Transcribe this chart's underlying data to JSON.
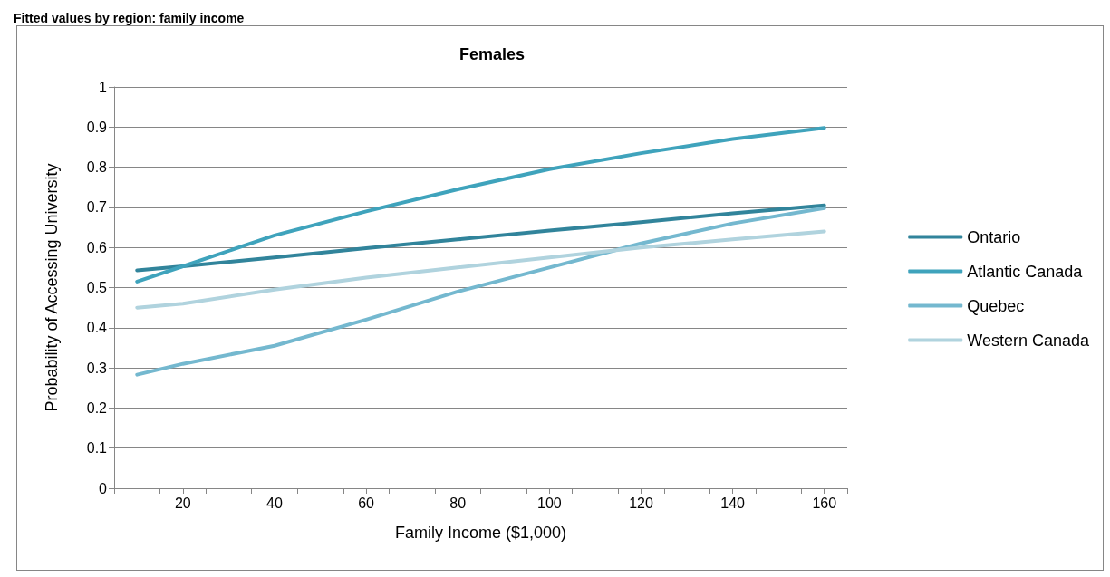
{
  "chart_data": {
    "type": "line",
    "title": "Fitted values by region: family income",
    "subtitle": "Females",
    "xlabel": "Family Income ($1,000)",
    "ylabel": "Probability of Accessing University",
    "x": [
      10,
      20,
      40,
      60,
      80,
      100,
      120,
      140,
      160
    ],
    "series": [
      {
        "name": "Ontario",
        "color": "#31849b",
        "values": [
          0.543,
          0.553,
          0.575,
          0.598,
          0.62,
          0.642,
          0.663,
          0.685,
          0.705
        ]
      },
      {
        "name": "Atlantic Canada",
        "color": "#3fa3bc",
        "values": [
          0.515,
          0.553,
          0.63,
          0.69,
          0.745,
          0.795,
          0.835,
          0.87,
          0.898
        ]
      },
      {
        "name": "Quebec",
        "color": "#74b8cf",
        "values": [
          0.283,
          0.31,
          0.355,
          0.42,
          0.49,
          0.55,
          0.61,
          0.66,
          0.698
        ]
      },
      {
        "name": "Western Canada",
        "color": "#b0d3de",
        "values": [
          0.45,
          0.46,
          0.495,
          0.525,
          0.55,
          0.575,
          0.6,
          0.62,
          0.64
        ]
      }
    ],
    "xlim": [
      5,
      165
    ],
    "xticks": [
      {
        "value": 5,
        "label": null
      },
      {
        "value": 15,
        "label": null
      },
      20,
      {
        "value": 25,
        "label": null
      },
      {
        "value": 35,
        "label": null
      },
      40,
      {
        "value": 45,
        "label": null
      },
      {
        "value": 55,
        "label": null
      },
      60,
      {
        "value": 65,
        "label": null
      },
      {
        "value": 75,
        "label": null
      },
      80,
      {
        "value": 85,
        "label": null
      },
      {
        "value": 95,
        "label": null
      },
      100,
      {
        "value": 105,
        "label": null
      },
      {
        "value": 115,
        "label": null
      },
      120,
      {
        "value": 125,
        "label": null
      },
      {
        "value": 135,
        "label": null
      },
      140,
      {
        "value": 145,
        "label": null
      },
      {
        "value": 155,
        "label": null
      },
      160,
      {
        "value": 165,
        "label": null
      }
    ],
    "ylim": [
      0,
      1
    ],
    "yticks": [
      0,
      0.1,
      0.2,
      0.3,
      0.4,
      0.5,
      0.6,
      0.7,
      0.8,
      0.9,
      1
    ],
    "grid": "y",
    "legend": "right",
    "marker": "none",
    "line_style": "solid"
  }
}
